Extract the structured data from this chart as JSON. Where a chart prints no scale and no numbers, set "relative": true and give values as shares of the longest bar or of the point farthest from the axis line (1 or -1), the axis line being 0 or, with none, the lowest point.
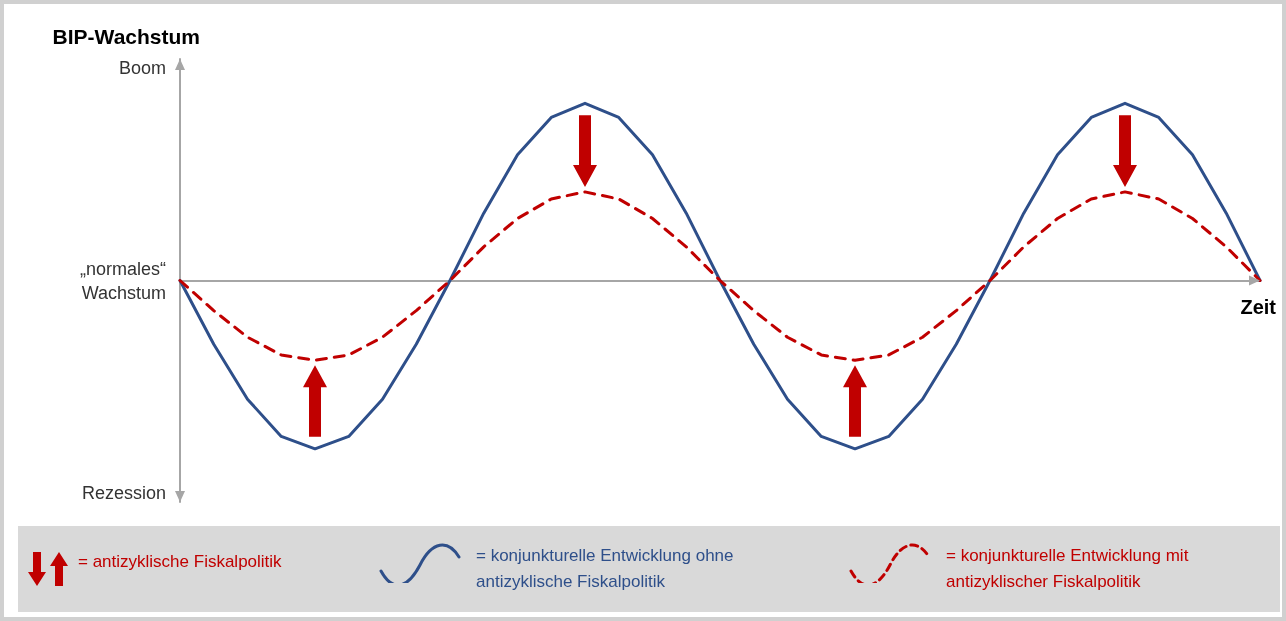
{
  "chart_data": {
    "type": "line",
    "relative": true,
    "ylabel": "BIP-Wachstum",
    "xlabel": "Zeit",
    "legend": "bottom",
    "categories": [
      null,
      null,
      null,
      null,
      null,
      null,
      null,
      null,
      null,
      null,
      null,
      null,
      null,
      null,
      null,
      null,
      null,
      null,
      null,
      null,
      null,
      null,
      null,
      null,
      null,
      null,
      null,
      null,
      null,
      null,
      null,
      null,
      null
    ],
    "series": [
      {
        "name": "= konjunkturelle Entwicklung ohne antizyklische Fiskalpolitik",
        "color": "#2e4f8a",
        "line_style": "solid",
        "values": [
          0,
          -0.36,
          -0.67,
          -0.88,
          -0.95,
          -0.88,
          -0.67,
          -0.36,
          0,
          0.38,
          0.71,
          0.92,
          1,
          0.92,
          0.71,
          0.38,
          0,
          -0.36,
          -0.67,
          -0.88,
          -0.95,
          -0.88,
          -0.67,
          -0.36,
          0,
          0.38,
          0.71,
          0.92,
          1,
          0.92,
          0.71,
          0.38,
          0
        ]
      },
      {
        "name": "= konjunkturelle Entwicklung mit antizyklischer Fiskalpolitik",
        "color": "#c00000",
        "line_style": "dashed",
        "values": [
          0,
          -0.17,
          -0.32,
          -0.42,
          -0.45,
          -0.42,
          -0.32,
          -0.17,
          0,
          0.19,
          0.35,
          0.46,
          0.5,
          0.46,
          0.35,
          0.19,
          0,
          -0.17,
          -0.32,
          -0.42,
          -0.45,
          -0.42,
          -0.32,
          -0.17,
          0,
          0.19,
          0.35,
          0.46,
          0.5,
          0.46,
          0.35,
          0.19,
          0
        ]
      }
    ],
    "annotations": [
      "Boom",
      "„normales“\nWachstum",
      "Rezession",
      "= antizyklische Fiskalpolitik"
    ]
  }
}
